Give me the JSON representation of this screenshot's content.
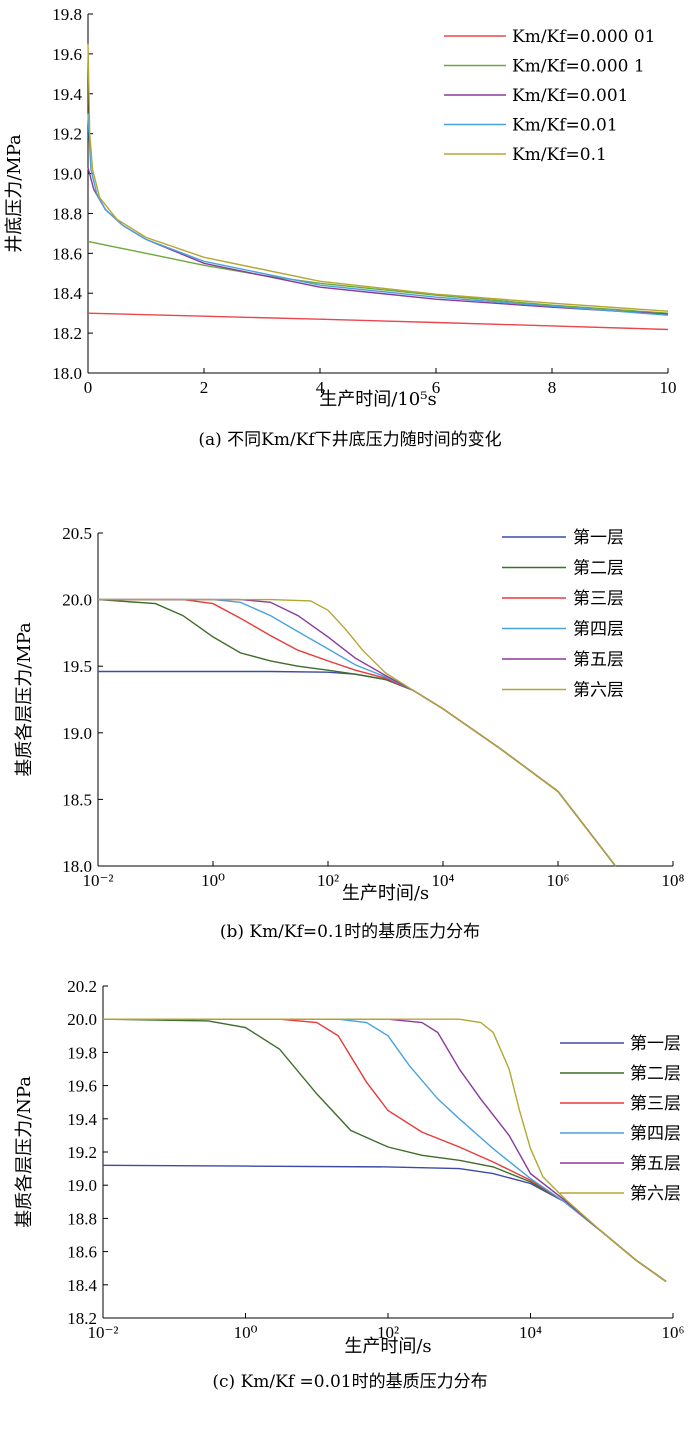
{
  "chart_data": [
    {
      "type": "line",
      "caption": "(a) 不同Km/Kf下井底压力随时间的变化",
      "xlabel": "生产时间/10⁵s",
      "ylabel": "井底压力/MPa",
      "xscale": "linear",
      "xlim": [
        0,
        10
      ],
      "ylim": [
        18.0,
        19.8
      ],
      "xticks": [
        0,
        2,
        4,
        6,
        8,
        10
      ],
      "xtick_labels": [
        "0",
        "2",
        "4",
        "6",
        "8",
        "10"
      ],
      "yticks": [
        18.0,
        18.2,
        18.4,
        18.6,
        18.8,
        19.0,
        19.2,
        19.4,
        19.6,
        19.8
      ],
      "ytick_labels": [
        "18.0",
        "18.2",
        "18.4",
        "18.6",
        "18.8",
        "19.0",
        "19.2",
        "19.4",
        "19.6",
        "19.8"
      ],
      "legend_position": "top-right",
      "series": [
        {
          "name": "Km/Kf=0.000 01",
          "color": "#e8484d",
          "x": [
            0,
            2,
            4,
            6,
            8,
            10
          ],
          "y": [
            18.3,
            18.285,
            18.27,
            18.253,
            18.236,
            18.218
          ]
        },
        {
          "name": "Km/Kf=0.000 1",
          "color": "#6aaa3c",
          "x": [
            0,
            0.5,
            1,
            2,
            3,
            4,
            6,
            8,
            10
          ],
          "y": [
            18.66,
            18.63,
            18.6,
            18.54,
            18.49,
            18.45,
            18.39,
            18.34,
            18.3
          ]
        },
        {
          "name": "Km/Kf=0.001",
          "color": "#8b3a9c",
          "x": [
            0,
            0.1,
            0.3,
            0.6,
            1,
            2,
            4,
            6,
            8,
            10
          ],
          "y": [
            19.03,
            18.92,
            18.82,
            18.74,
            18.67,
            18.55,
            18.43,
            18.37,
            18.33,
            18.295
          ]
        },
        {
          "name": "Km/Kf=0.01",
          "color": "#4aa3dd",
          "x": [
            0,
            0.05,
            0.15,
            0.3,
            0.6,
            1,
            2,
            4,
            6,
            8,
            10
          ],
          "y": [
            19.3,
            19.02,
            18.9,
            18.82,
            18.74,
            18.67,
            18.56,
            18.44,
            18.38,
            18.335,
            18.29
          ]
        },
        {
          "name": "Km/Kf=0.1",
          "color": "#b5a533",
          "x": [
            0,
            0.03,
            0.08,
            0.2,
            0.5,
            1,
            2,
            4,
            6,
            8,
            10
          ],
          "y": [
            19.65,
            19.2,
            19.02,
            18.88,
            18.77,
            18.68,
            18.58,
            18.46,
            18.395,
            18.35,
            18.31
          ]
        }
      ]
    },
    {
      "type": "line",
      "caption": "(b) Km/Kf=0.1时的基质压力分布",
      "xlabel": "生产时间/s",
      "ylabel": "基质各层压力/MPa",
      "xscale": "log",
      "xlim": [
        0.01,
        100000000
      ],
      "ylim": [
        18.0,
        20.5
      ],
      "xticks": [
        0.01,
        1,
        100,
        10000,
        1000000,
        100000000
      ],
      "xtick_labels": [
        "10⁻²",
        "10⁰",
        "10²",
        "10⁴",
        "10⁶",
        "10⁸"
      ],
      "yticks": [
        18.0,
        18.5,
        19.0,
        19.5,
        20.0,
        20.5
      ],
      "ytick_labels": [
        "18.0",
        "18.5",
        "19.0",
        "19.5",
        "20.0",
        "20.5"
      ],
      "legend_position": "top-right",
      "series": [
        {
          "name": "第一层",
          "color": "#3d4aa8",
          "x": [
            0.01,
            1,
            10,
            100,
            300,
            1000,
            3000,
            10000,
            100000,
            1000000,
            10000000
          ],
          "y": [
            19.46,
            19.46,
            19.46,
            19.455,
            19.44,
            19.4,
            19.32,
            19.18,
            18.88,
            18.56,
            18.0
          ]
        },
        {
          "name": "第二层",
          "color": "#3e6e2a",
          "x": [
            0.01,
            0.1,
            0.3,
            1,
            3,
            10,
            30,
            100,
            300,
            1000,
            3000,
            10000,
            100000,
            1000000,
            10000000
          ],
          "y": [
            20.0,
            19.97,
            19.88,
            19.72,
            19.6,
            19.54,
            19.5,
            19.47,
            19.44,
            19.4,
            19.32,
            19.18,
            18.88,
            18.56,
            18.0
          ]
        },
        {
          "name": "第三层",
          "color": "#e83a3a",
          "x": [
            0.01,
            0.3,
            1,
            3,
            10,
            30,
            100,
            300,
            1000,
            3000,
            10000,
            100000,
            1000000,
            10000000
          ],
          "y": [
            20.0,
            20.0,
            19.97,
            19.86,
            19.73,
            19.62,
            19.54,
            19.47,
            19.41,
            19.32,
            19.18,
            18.88,
            18.56,
            18.0
          ]
        },
        {
          "name": "第四层",
          "color": "#4aa3dd",
          "x": [
            0.01,
            1,
            3,
            10,
            30,
            100,
            300,
            1000,
            3000,
            10000,
            100000,
            1000000,
            10000000
          ],
          "y": [
            20.0,
            20.0,
            19.98,
            19.88,
            19.76,
            19.63,
            19.51,
            19.42,
            19.32,
            19.18,
            18.88,
            18.56,
            18.0
          ]
        },
        {
          "name": "第五层",
          "color": "#8b3a9c",
          "x": [
            0.01,
            3,
            10,
            30,
            100,
            300,
            1000,
            3000,
            10000,
            100000,
            1000000,
            10000000
          ],
          "y": [
            20.0,
            20.0,
            19.98,
            19.88,
            19.72,
            19.56,
            19.43,
            19.32,
            19.18,
            18.88,
            18.56,
            18.0
          ]
        },
        {
          "name": "第六层",
          "color": "#b5a533",
          "x": [
            0.01,
            10,
            50,
            100,
            200,
            400,
            1000,
            3000,
            10000,
            100000,
            1000000,
            10000000
          ],
          "y": [
            20.0,
            20.0,
            19.99,
            19.92,
            19.78,
            19.62,
            19.45,
            19.32,
            19.18,
            18.88,
            18.56,
            18.0
          ]
        }
      ]
    },
    {
      "type": "line",
      "caption": "(c) Km/Kf =0.01时的基质压力分布",
      "xlabel": "生产时间/s",
      "ylabel": "基质各层压力/NPa",
      "xscale": "log",
      "xlim": [
        0.01,
        1000000
      ],
      "ylim": [
        18.2,
        20.2
      ],
      "xticks": [
        0.01,
        1,
        100,
        10000,
        1000000
      ],
      "xtick_labels": [
        "10⁻²",
        "10⁰",
        "10²",
        "10⁴",
        "10⁶"
      ],
      "yticks": [
        18.2,
        18.4,
        18.6,
        18.8,
        19.0,
        19.2,
        19.4,
        19.6,
        19.8,
        20.0,
        20.2
      ],
      "ytick_labels": [
        "18.2",
        "18.4",
        "18.6",
        "18.8",
        "19.0",
        "19.2",
        "19.4",
        "19.6",
        "19.8",
        "20.0",
        "20.2"
      ],
      "legend_position": "top-right",
      "series": [
        {
          "name": "第一层",
          "color": "#3d4aa8",
          "x": [
            0.01,
            1,
            100,
            1000,
            3000,
            10000,
            30000,
            100000,
            300000,
            800000
          ],
          "y": [
            19.12,
            19.115,
            19.11,
            19.1,
            19.07,
            19.01,
            18.9,
            18.72,
            18.55,
            18.42
          ]
        },
        {
          "name": "第二层",
          "color": "#3e6e2a",
          "x": [
            0.01,
            0.3,
            1,
            3,
            10,
            30,
            100,
            300,
            1000,
            3000,
            10000,
            30000,
            100000,
            300000,
            800000
          ],
          "y": [
            20.0,
            19.99,
            19.95,
            19.82,
            19.55,
            19.33,
            19.23,
            19.18,
            19.15,
            19.11,
            19.02,
            18.9,
            18.72,
            18.55,
            18.42
          ]
        },
        {
          "name": "第三层",
          "color": "#e83a3a",
          "x": [
            0.01,
            3,
            10,
            20,
            50,
            100,
            300,
            1000,
            3000,
            10000,
            30000,
            100000,
            300000,
            800000
          ],
          "y": [
            20.0,
            20.0,
            19.98,
            19.9,
            19.62,
            19.45,
            19.32,
            19.23,
            19.14,
            19.03,
            18.9,
            18.72,
            18.55,
            18.42
          ]
        },
        {
          "name": "第四层",
          "color": "#4aa3dd",
          "x": [
            0.01,
            20,
            50,
            100,
            200,
            500,
            1000,
            3000,
            10000,
            30000,
            100000,
            300000,
            800000
          ],
          "y": [
            20.0,
            20.0,
            19.98,
            19.9,
            19.72,
            19.52,
            19.4,
            19.22,
            19.04,
            18.9,
            18.72,
            18.55,
            18.42
          ]
        },
        {
          "name": "第五层",
          "color": "#8b3a9c",
          "x": [
            0.01,
            100,
            300,
            500,
            1000,
            2000,
            5000,
            10000,
            30000,
            100000,
            300000,
            800000
          ],
          "y": [
            20.0,
            20.0,
            19.98,
            19.92,
            19.7,
            19.52,
            19.3,
            19.07,
            18.91,
            18.72,
            18.55,
            18.42
          ]
        },
        {
          "name": "第六层",
          "color": "#b5a533",
          "x": [
            0.01,
            1000,
            2000,
            3000,
            5000,
            7000,
            10000,
            15000,
            30000,
            100000,
            300000,
            800000
          ],
          "y": [
            20.0,
            20.0,
            19.98,
            19.92,
            19.7,
            19.45,
            19.22,
            19.05,
            18.92,
            18.72,
            18.55,
            18.42
          ]
        }
      ]
    }
  ]
}
